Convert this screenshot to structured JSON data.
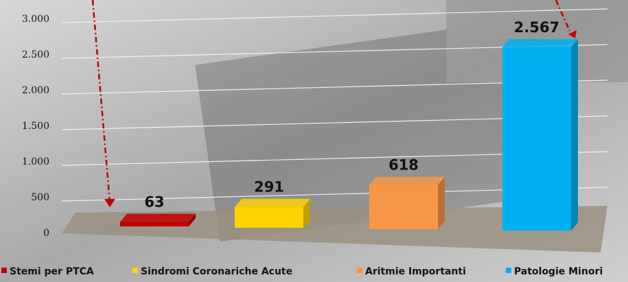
{
  "chart_data": {
    "type": "bar3d",
    "categories": [
      "Stemi per PTCA",
      "Sindromi Coronariche Acute",
      "Aritmie Importanti",
      "Patologie Minori"
    ],
    "values": [
      63,
      291,
      618,
      2567
    ],
    "value_labels": [
      "63",
      "291",
      "618",
      "2.567"
    ],
    "colors": [
      "#c00000",
      "#ffd200",
      "#f79646",
      "#00b0f0"
    ],
    "ylim": [
      0,
      3000
    ],
    "yticks": [
      0,
      500,
      {
        "value": 1000,
        "label": "1.000"
      },
      {
        "value": 1500,
        "label": "1.500"
      },
      {
        "value": 2000,
        "label": "2.000"
      },
      {
        "value": 2500,
        "label": "2.500"
      },
      {
        "value": 3000,
        "label": "3.000"
      }
    ],
    "grid": true,
    "legend": "bottom"
  }
}
